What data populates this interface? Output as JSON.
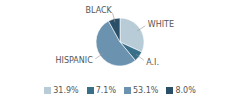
{
  "chart_data": {
    "type": "pie",
    "categories": [
      "WHITE",
      "A.I.",
      "HISPANIC",
      "BLACK"
    ],
    "values": [
      31.9,
      7.1,
      53.1,
      8.0
    ],
    "value_labels": [
      "31.9%",
      "7.1%",
      "53.1%",
      "8.0%"
    ],
    "colors": [
      "#b8ccd8",
      "#3a6f8a",
      "#6b93b0",
      "#2a4f68"
    ],
    "legend": "bottom"
  }
}
